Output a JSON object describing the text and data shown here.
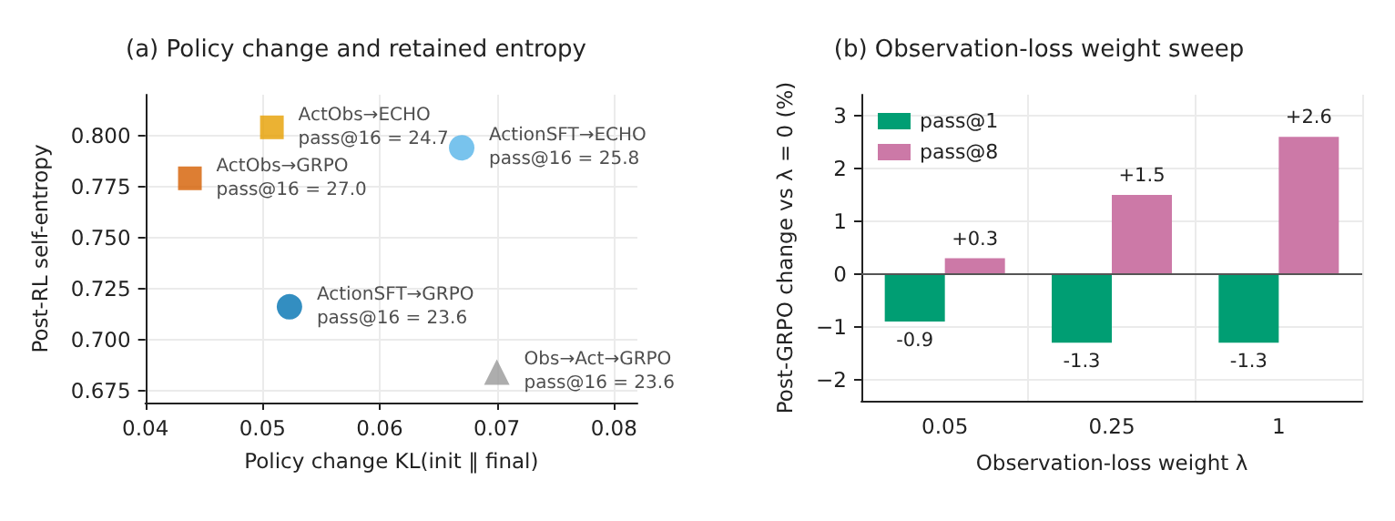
{
  "chart_data": [
    {
      "type": "scatter",
      "title": "(a) Policy change and retained entropy",
      "xlabel": "Policy change KL(init ‖ final)",
      "ylabel": "Post-RL self-entropy",
      "xlim": [
        0.04,
        0.082
      ],
      "xticks": [
        0.04,
        0.05,
        0.06,
        0.07,
        0.08
      ],
      "ylim": [
        0.669,
        0.82
      ],
      "yticks": [
        {
          "value": 0.675,
          "label": "0.675"
        },
        {
          "value": 0.7,
          "label": "0.700"
        },
        {
          "value": 0.725,
          "label": "0.725"
        },
        {
          "value": 0.75,
          "label": "0.750"
        },
        {
          "value": 0.775,
          "label": "0.775"
        },
        {
          "value": 0.8,
          "label": "0.800"
        }
      ],
      "grid": true,
      "series": [
        {
          "name": "ActObs→ECHO",
          "color": "#e69f00",
          "marker": "square",
          "x": [
            0.0508
          ],
          "values": [
            0.804
          ]
        },
        {
          "name": "ActionSFT→ECHO",
          "color": "#56b4e9",
          "marker": "circle",
          "x": [
            0.067
          ],
          "values": [
            0.794
          ]
        },
        {
          "name": "ActObs→GRPO",
          "color": "#d55e00",
          "marker": "square",
          "x": [
            0.0438
          ],
          "values": [
            0.779
          ]
        },
        {
          "name": "ActionSFT→GRPO",
          "color": "#0072b2",
          "marker": "circle",
          "x": [
            0.0523
          ],
          "values": [
            0.716
          ]
        },
        {
          "name": "Obs→Act→GRPO",
          "color": "#999999",
          "marker": "triangle",
          "x": [
            0.07
          ],
          "values": [
            0.684
          ]
        }
      ],
      "annotations": [
        {
          "text": "pass@16 = 24.7",
          "x": 0.0508,
          "y": 0.804
        },
        {
          "text": "pass@16 = 25.8",
          "x": 0.067,
          "y": 0.794
        },
        {
          "text": "pass@16 = 27.0",
          "x": 0.0438,
          "y": 0.779
        },
        {
          "text": "pass@16 = 23.6",
          "x": 0.0523,
          "y": 0.716
        },
        {
          "text": "pass@16 = 23.6",
          "x": 0.07,
          "y": 0.684
        }
      ]
    },
    {
      "type": "bar",
      "title": "(b) Observation-loss weight sweep",
      "xlabel": "Observation-loss weight λ",
      "ylabel": "Post-GRPO change vs λ = 0 (%)",
      "categories": [
        "0.05",
        "0.25",
        "1"
      ],
      "ylim": [
        -2.4,
        3.4
      ],
      "yticks": [
        {
          "value": -2,
          "label": "−2"
        },
        {
          "value": -1,
          "label": "−1"
        },
        0,
        1,
        2,
        3
      ],
      "grid": true,
      "legend": "top left",
      "ref_lines": [
        {
          "axis": "y",
          "value": 0,
          "label": null,
          "color": "#555555"
        }
      ],
      "series": [
        {
          "name": "pass@1",
          "color": "#009e73",
          "values": [
            -0.9,
            -1.3,
            -1.3
          ],
          "value_labels": [
            "-0.9",
            "-1.3",
            "-1.3"
          ]
        },
        {
          "name": "pass@8",
          "color": "#cc79a7",
          "values": [
            0.3,
            1.5,
            2.6
          ],
          "value_labels": [
            "+0.3",
            "+1.5",
            "+2.6"
          ]
        }
      ]
    }
  ]
}
